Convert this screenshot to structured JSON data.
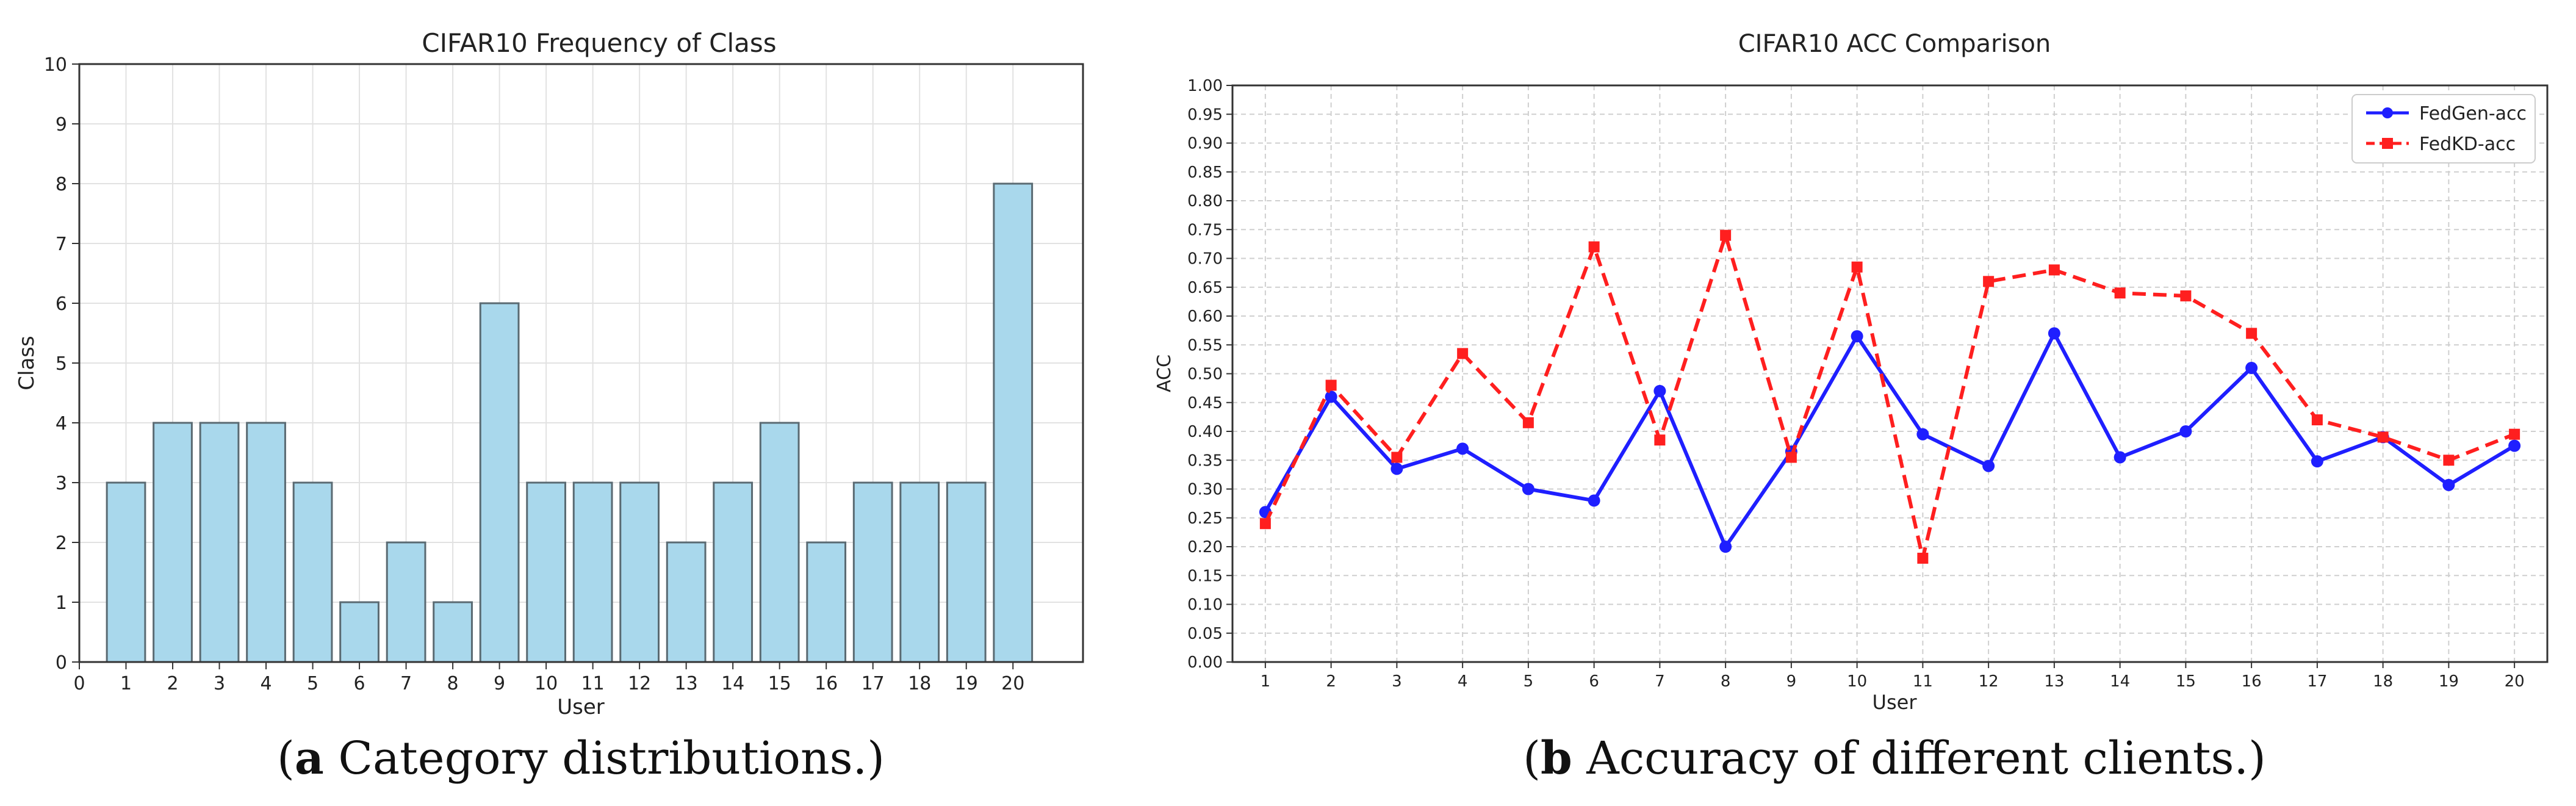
{
  "chart_data": [
    {
      "type": "bar",
      "title": "CIFAR10 Frequency of Class",
      "xlabel": "User",
      "ylabel": "Class",
      "categories": [
        "1",
        "2",
        "3",
        "4",
        "5",
        "6",
        "7",
        "8",
        "9",
        "10",
        "11",
        "12",
        "13",
        "14",
        "15",
        "16",
        "17",
        "18",
        "19",
        "20"
      ],
      "values": [
        3,
        4,
        4,
        4,
        3,
        1,
        2,
        1,
        6,
        3,
        3,
        3,
        2,
        3,
        4,
        2,
        3,
        3,
        3,
        8
      ],
      "xticks": [
        "0",
        "1",
        "2",
        "3",
        "4",
        "5",
        "6",
        "7",
        "8",
        "9",
        "10",
        "11",
        "12",
        "13",
        "14",
        "15",
        "16",
        "17",
        "18",
        "19",
        "20"
      ],
      "xlim": [
        0,
        21.5
      ],
      "ylim": [
        0,
        10
      ],
      "yticks": [
        "0",
        "1",
        "2",
        "3",
        "4",
        "5",
        "6",
        "7",
        "8",
        "9",
        "10"
      ],
      "grid": true,
      "colors": {
        "bar_fill": "#a9d8ec",
        "bar_edge": "#5a6a72"
      }
    },
    {
      "type": "line",
      "title": "CIFAR10 ACC Comparison",
      "xlabel": "User",
      "ylabel": "ACC",
      "x": [
        1,
        2,
        3,
        4,
        5,
        6,
        7,
        8,
        9,
        10,
        11,
        12,
        13,
        14,
        15,
        16,
        17,
        18,
        19,
        20
      ],
      "xlim": [
        0.5,
        20.5
      ],
      "ylim": [
        0,
        1
      ],
      "yticks": [
        "0.00",
        "0.05",
        "0.10",
        "0.15",
        "0.20",
        "0.25",
        "0.30",
        "0.35",
        "0.40",
        "0.45",
        "0.50",
        "0.55",
        "0.60",
        "0.65",
        "0.70",
        "0.75",
        "0.80",
        "0.85",
        "0.90",
        "0.95",
        "1.00"
      ],
      "grid": true,
      "legend_position": "top-right",
      "series": [
        {
          "name": "FedGen-acc",
          "color": "#1f1fff",
          "marker": "circle",
          "linestyle": "solid",
          "values": [
            0.26,
            0.46,
            0.335,
            0.37,
            0.3,
            0.28,
            0.47,
            0.2,
            0.365,
            0.565,
            0.395,
            0.34,
            0.57,
            0.355,
            0.4,
            0.51,
            0.348,
            0.39,
            0.307,
            0.375
          ]
        },
        {
          "name": "FedKD-acc",
          "color": "#ff1f1f",
          "marker": "square",
          "linestyle": "dashed",
          "values": [
            0.24,
            0.48,
            0.355,
            0.535,
            0.415,
            0.72,
            0.385,
            0.74,
            0.355,
            0.685,
            0.18,
            0.66,
            0.68,
            0.64,
            0.635,
            0.57,
            0.42,
            0.39,
            0.35,
            0.395
          ]
        }
      ]
    }
  ],
  "captions": {
    "a_label": "a",
    "a_text": " Category distributions.",
    "b_label": "b",
    "b_text": " Accuracy of different clients."
  }
}
